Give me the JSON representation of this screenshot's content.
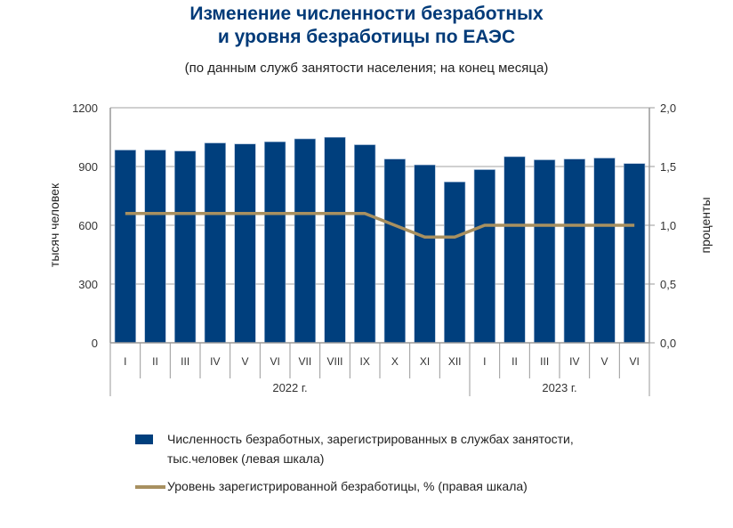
{
  "chart_data": {
    "type": "bar",
    "title_line1": "Изменение численности безработных",
    "title_line2": "и уровня безработицы по ЕАЭС",
    "subtitle": "(по данным служб занятости населения; на конец месяца)",
    "categories": [
      "I",
      "II",
      "III",
      "IV",
      "V",
      "VI",
      "VII",
      "VIII",
      "IX",
      "X",
      "XI",
      "XII",
      "I",
      "II",
      "III",
      "IV",
      "V",
      "VI"
    ],
    "groups": [
      {
        "label": "2022 г.",
        "count": 12
      },
      {
        "label": "2023 г.",
        "count": 6
      }
    ],
    "series": [
      {
        "name": "Численность безработных, зарегистрированных в  службах занятости, тыс.человек (левая шкала)",
        "name_line1": "Численность безработных, зарегистрированных в  службах занятости,",
        "name_line2": "тыс.человек (левая шкала)",
        "type": "bar",
        "axis": "left",
        "color": "#003f7d",
        "values": [
          984,
          984,
          979,
          1020,
          1015,
          1026,
          1041,
          1049,
          1011,
          938,
          908,
          821,
          884,
          950,
          934,
          938,
          943,
          915
        ]
      },
      {
        "name": "Уровень зарегистрированной безработицы, % (правая шкала)",
        "type": "line",
        "axis": "right",
        "color": "#a89060",
        "values": [
          1.1,
          1.1,
          1.1,
          1.1,
          1.1,
          1.1,
          1.1,
          1.1,
          1.1,
          1.0,
          0.9,
          0.9,
          1.0,
          1.0,
          1.0,
          1.0,
          1.0,
          1.0
        ]
      }
    ],
    "ylabel": "тысяч человек",
    "ylim": [
      0,
      1200
    ],
    "yticks": [
      "0",
      "300",
      "600",
      "900",
      "1200"
    ],
    "y2label": "проценты",
    "y2lim": [
      0,
      2
    ],
    "y2ticks": [
      "0,0",
      "0,5",
      "1,0",
      "1,5",
      "2,0"
    ],
    "grid": true,
    "legend": "bottom"
  }
}
